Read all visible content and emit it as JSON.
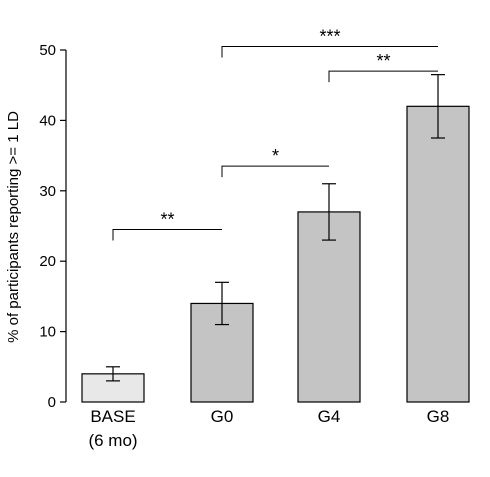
{
  "chart_data": {
    "type": "bar",
    "ylabel": "% of participants reporting >= 1 LD",
    "ylim": [
      0,
      50
    ],
    "yticks": [
      "0",
      "10",
      "20",
      "30",
      "40",
      "50"
    ],
    "grid": false,
    "categories": [
      {
        "label": "BASE",
        "sublabel": "(6 mo)"
      },
      {
        "label": "G0",
        "sublabel": ""
      },
      {
        "label": "G4",
        "sublabel": ""
      },
      {
        "label": "G8",
        "sublabel": ""
      }
    ],
    "values": [
      4,
      14,
      27,
      42
    ],
    "error_low": [
      3,
      11,
      23,
      37.5
    ],
    "error_high": [
      5,
      17,
      31,
      46.5
    ],
    "bar_colors": [
      "#e8e8e8",
      "#c4c4c4",
      "#c4c4c4",
      "#c4c4c4"
    ],
    "significance": [
      {
        "from": 0,
        "to": 1,
        "y": 24.5,
        "label": "**"
      },
      {
        "from": 1,
        "to": 2,
        "y": 33.5,
        "label": "*"
      },
      {
        "from": 2,
        "to": 3,
        "y": 47,
        "label": "**"
      },
      {
        "from": 1,
        "to": 3,
        "y": 50.5,
        "label": "***"
      }
    ]
  }
}
